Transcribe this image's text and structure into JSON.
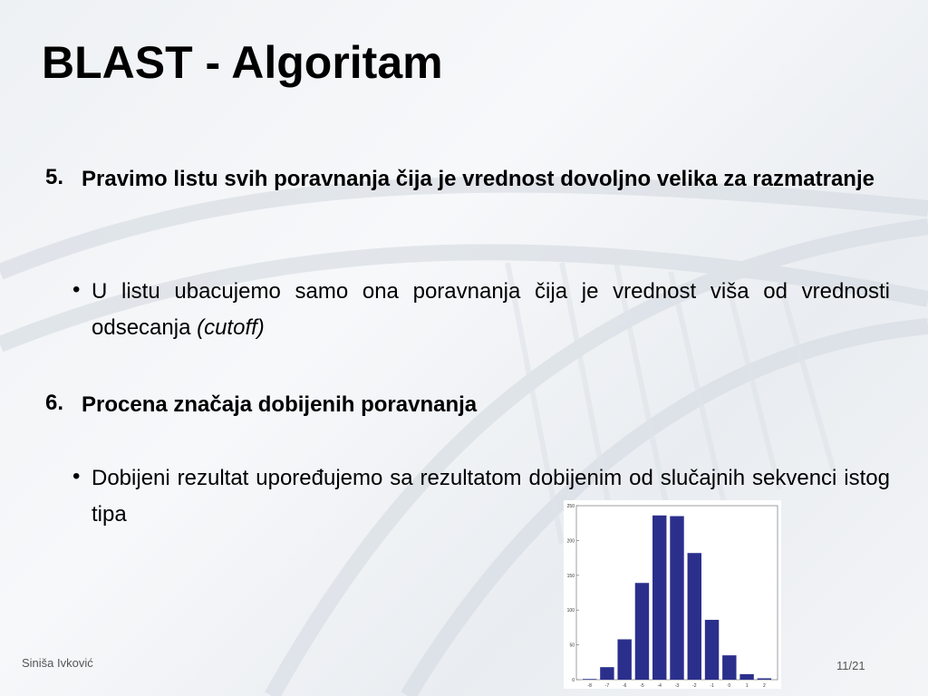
{
  "slide": {
    "title": "BLAST - Algoritam",
    "items": [
      {
        "number": "5.",
        "text": "Pravimo listu svih poravnanja čija je vrednost dovoljno velika za razmatranje"
      },
      {
        "bullet": "•",
        "text": "U listu ubacujemo samo ona poravnanja čija je vrednost viša od vrednosti odsecanja ",
        "italic": "(cutoff)"
      },
      {
        "number": "6.",
        "text": "Procena značaja dobijenih poravnanja"
      },
      {
        "bullet": "•",
        "text": "Dobijeni rezultat upoređujemo sa rezultatom dobijenim od slučajnih sekvenci istog tipa"
      }
    ],
    "footer_author": "Siniša Ivković",
    "page": "11/21"
  },
  "chart_data": {
    "type": "bar",
    "categories": [
      "-8",
      "-7",
      "-6",
      "-5",
      "-4",
      "-3",
      "-2",
      "-1",
      "0",
      "1",
      "2"
    ],
    "values": [
      1,
      18,
      58,
      139,
      236,
      235,
      182,
      86,
      35,
      8,
      2
    ],
    "ylim": [
      0,
      250
    ],
    "yticks": [
      "0",
      "50",
      "100",
      "150",
      "200",
      "250"
    ],
    "bar_color": "#2b2f8c",
    "grid": false
  }
}
